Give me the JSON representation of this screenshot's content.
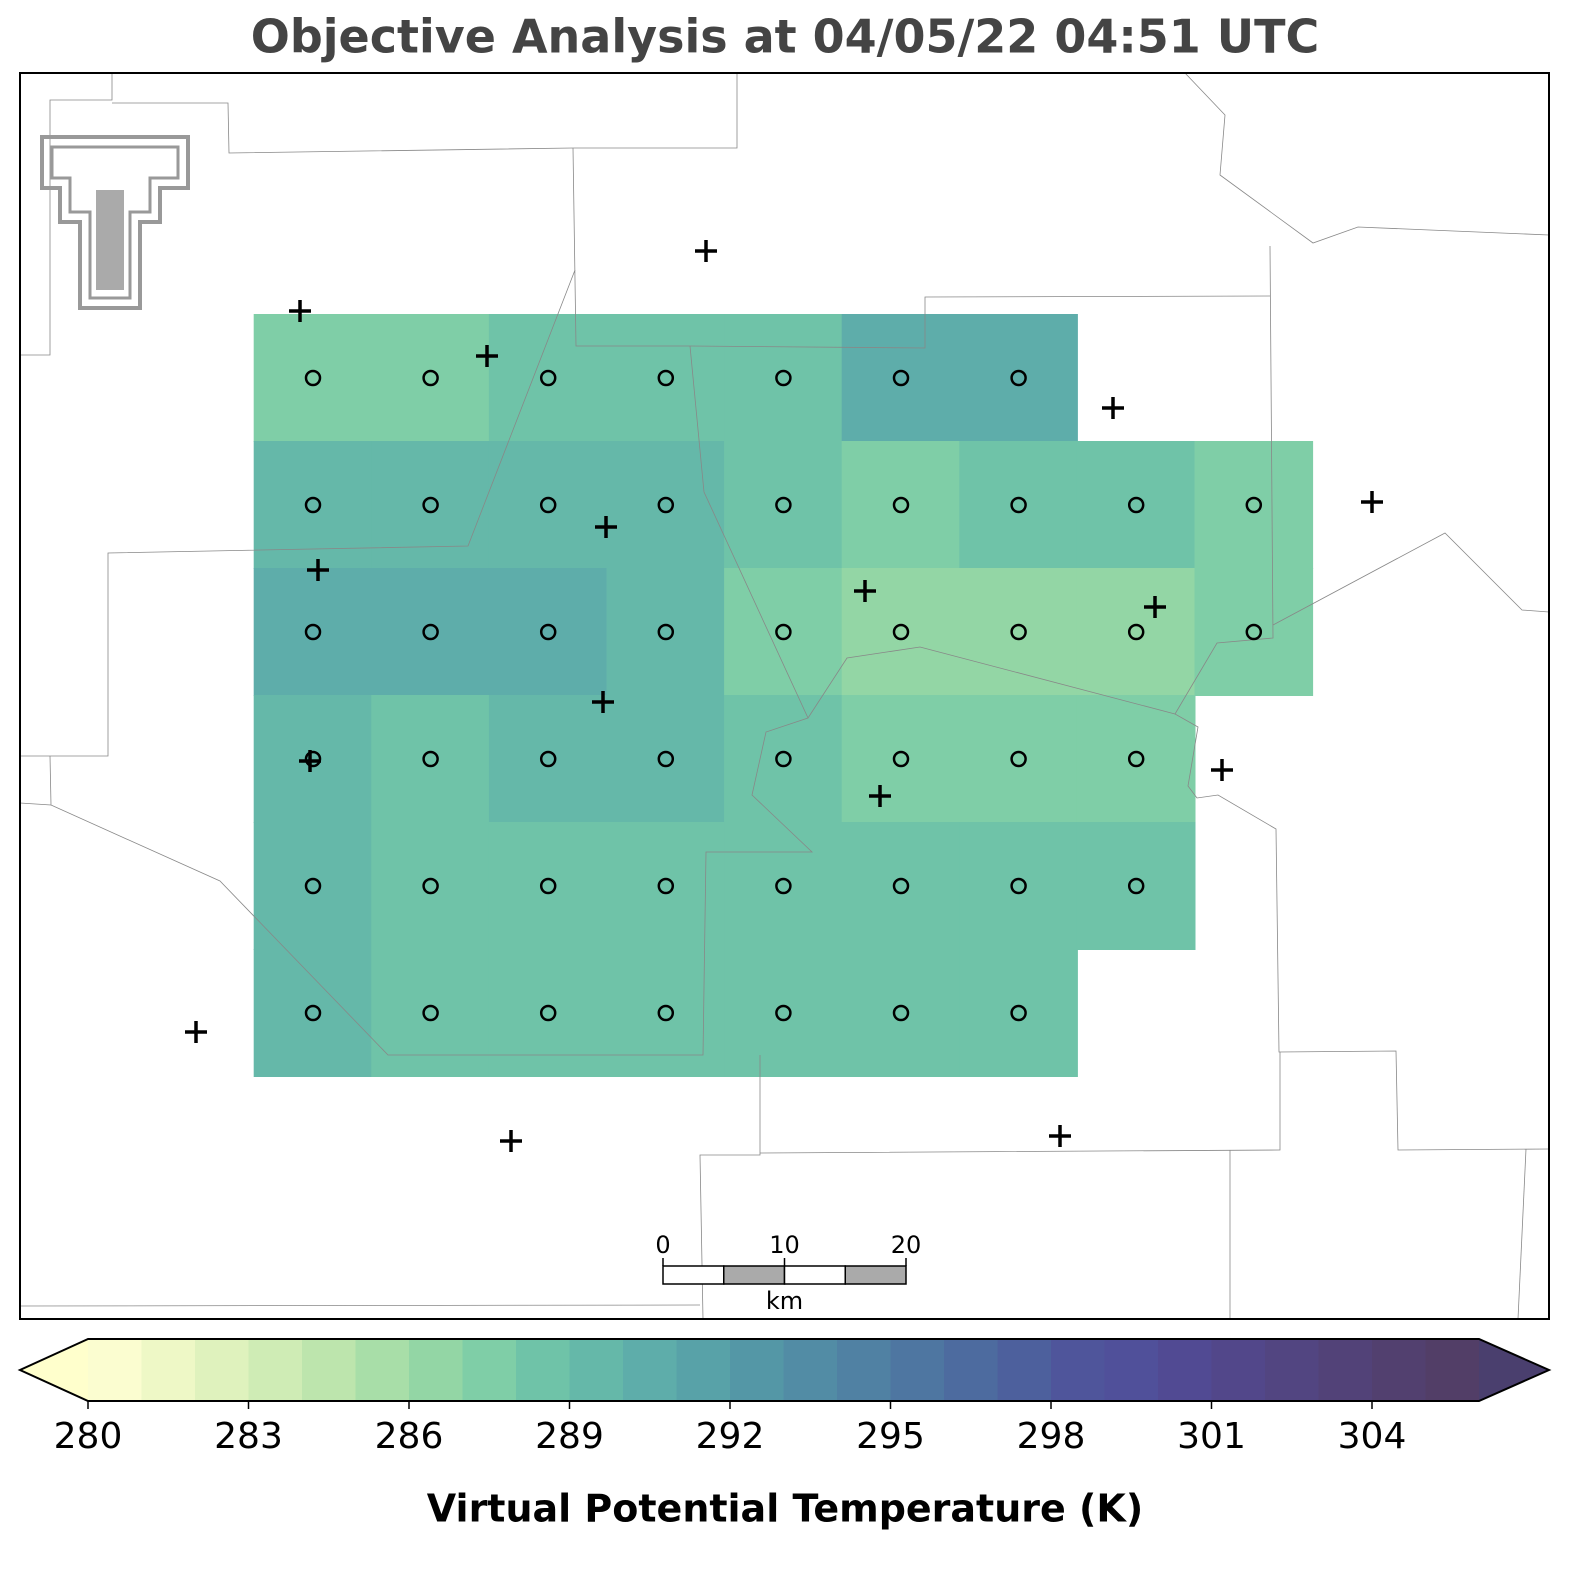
{
  "chart_data": {
    "type": "map",
    "title": "Objective Analysis at 04/05/22 04:51 UTC",
    "colorbar": {
      "label": "Virtual Potential Temperature (K)",
      "lim": [
        280,
        306
      ],
      "ticks": [
        280,
        283,
        286,
        289,
        292,
        295,
        298,
        301,
        304
      ],
      "colors": [
        "#fbfdd0",
        "#eef8c6",
        "#dff2bd",
        "#cfecb5",
        "#bde5ad",
        "#a8dea8",
        "#93d6a5",
        "#7fcea7",
        "#6fc3a8",
        "#65b8a9",
        "#5eadaa",
        "#58a2a8",
        "#5497a6",
        "#528ca5",
        "#5081a3",
        "#4e76a1",
        "#4d6b9f",
        "#4d609d",
        "#4f559b",
        "#50509a",
        "#514a93",
        "#52478a",
        "#524581",
        "#524278",
        "#52406f",
        "#523e67"
      ],
      "under_color": "#ffffcc",
      "over_color": "#4a3f6e"
    },
    "grid_values": [
      [
        287,
        287.5,
        288,
        288.5,
        288.5,
        290,
        290.5,
        null,
        null
      ],
      [
        289.5,
        289.5,
        289.5,
        289,
        288,
        287.5,
        288,
        288.5,
        287
      ],
      [
        290,
        290.5,
        290.5,
        289.5,
        287.5,
        286.5,
        286.5,
        286.5,
        287
      ],
      [
        289,
        288.5,
        289.5,
        289,
        288,
        287,
        287,
        287,
        null
      ],
      [
        289.5,
        288.5,
        288.5,
        288,
        288,
        288,
        288,
        288,
        null
      ],
      [
        289.5,
        288,
        288,
        288,
        288,
        288,
        288,
        null,
        null
      ]
    ],
    "scale_bar": {
      "ticks": [
        0,
        10,
        20
      ],
      "unit": "km"
    }
  }
}
